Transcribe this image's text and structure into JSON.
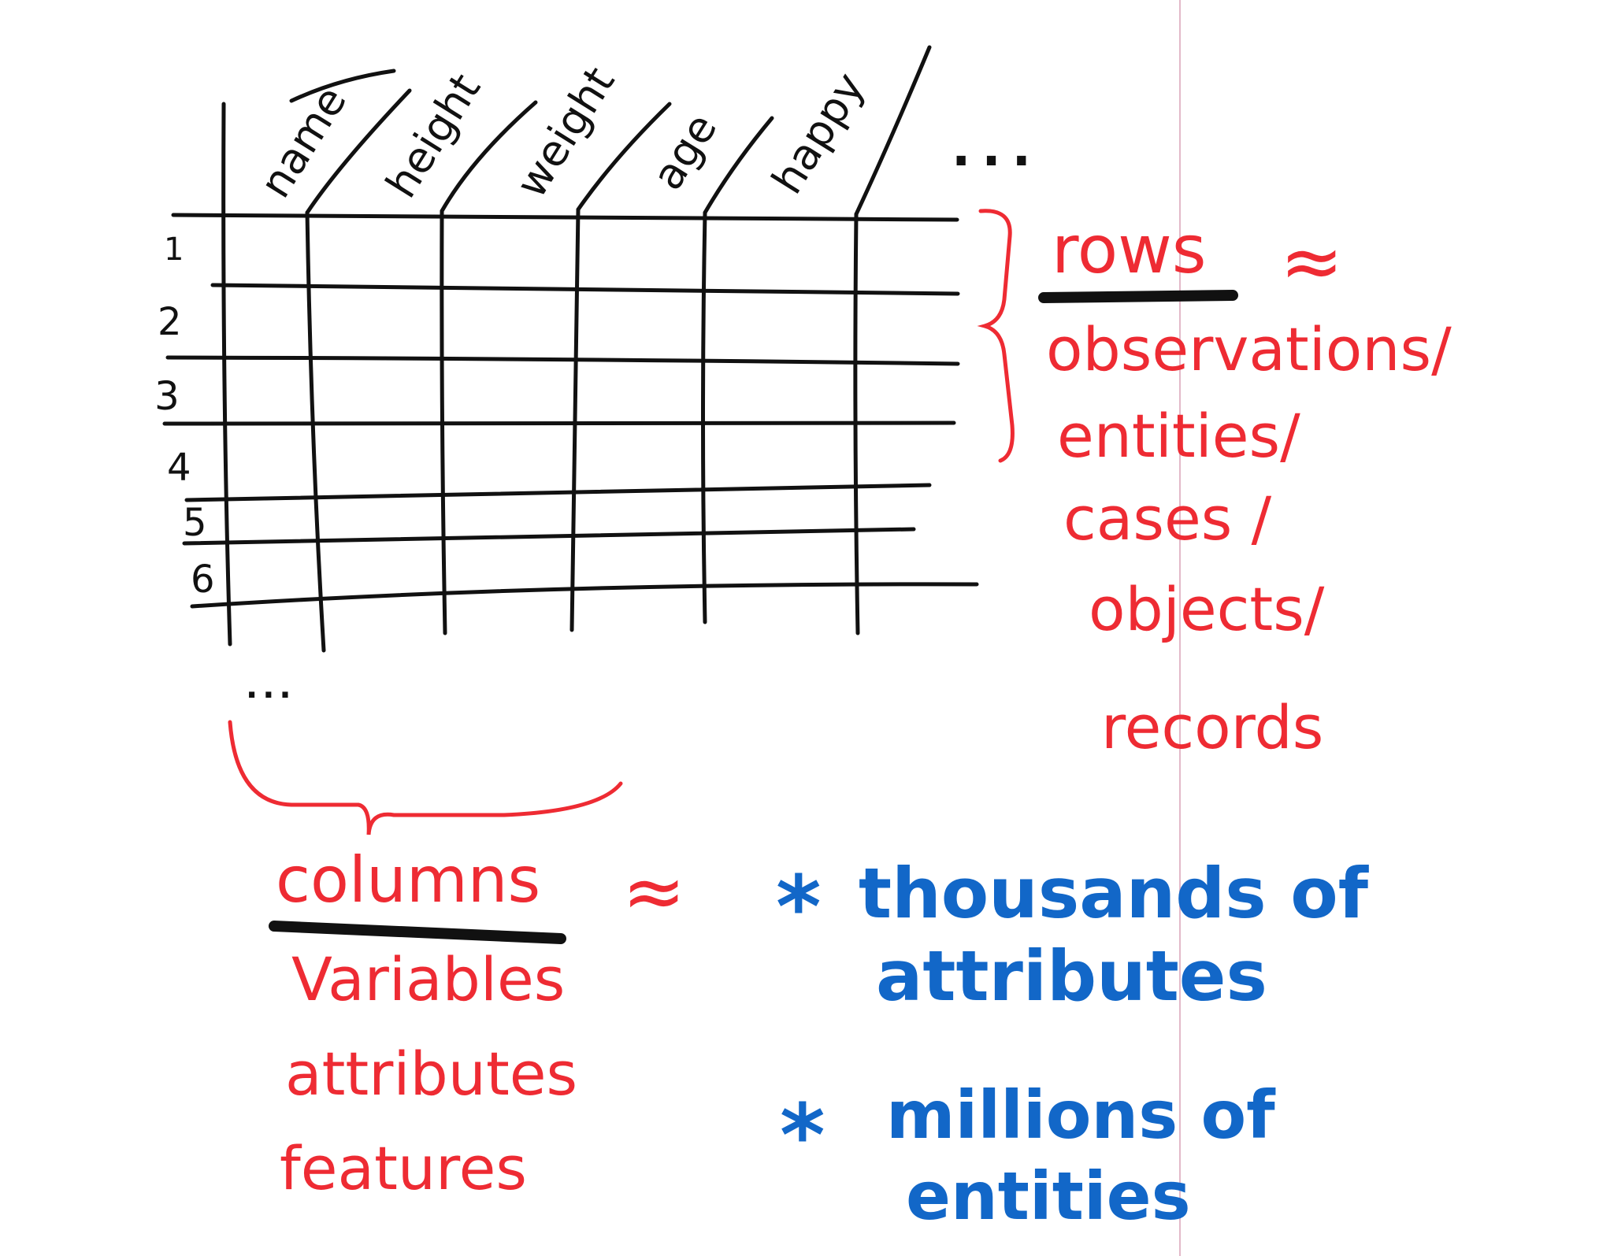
{
  "table": {
    "column_headers": [
      "name",
      "height",
      "weight",
      "age",
      "happy"
    ],
    "more_columns": "...",
    "row_numbers": [
      "1",
      "2",
      "3",
      "4",
      "5",
      "6"
    ],
    "more_rows": "..."
  },
  "rows_note": {
    "term": "rows",
    "approx_symbol": "≈",
    "synonyms": [
      "observations/",
      "entities/",
      "cases /",
      "objects/",
      "records"
    ]
  },
  "columns_note": {
    "term": "columns",
    "approx_symbol": "≈",
    "synonyms": [
      "Variables",
      "attributes",
      "features"
    ]
  },
  "scale_notes": {
    "bullet": "*",
    "items": [
      {
        "line1": "thousands of",
        "line2": "attributes"
      },
      {
        "line1": "millions of",
        "line2": "entities"
      }
    ]
  },
  "colors": {
    "black_ink": "#111111",
    "red_ink": "#ee2b33",
    "blue_ink": "#1267c8",
    "margin_line": "#e3b9c9"
  }
}
